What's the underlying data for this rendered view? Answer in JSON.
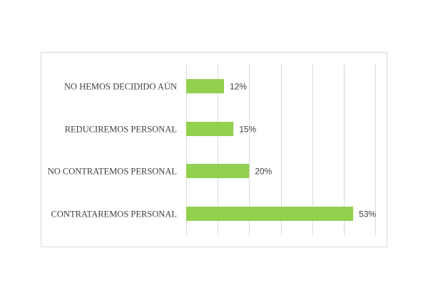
{
  "chart_data": {
    "type": "bar",
    "orientation": "horizontal",
    "categories": [
      "NO HEMOS DECIDIDO AÚN",
      "REDUCIREMOS PERSONAL",
      "NO CONTRATEMOS PERSONAL",
      "CONTRATAREMOS PERSONAL"
    ],
    "values": [
      12,
      15,
      20,
      53
    ],
    "value_labels": [
      "12%",
      "15%",
      "20%",
      "53%"
    ],
    "xlim": [
      0,
      60
    ],
    "x_gridlines": [
      0,
      10,
      20,
      30,
      40,
      50,
      60
    ],
    "grid": true,
    "legend": "none",
    "bar_color": "#92d050",
    "title": "",
    "xlabel": "",
    "ylabel": ""
  }
}
